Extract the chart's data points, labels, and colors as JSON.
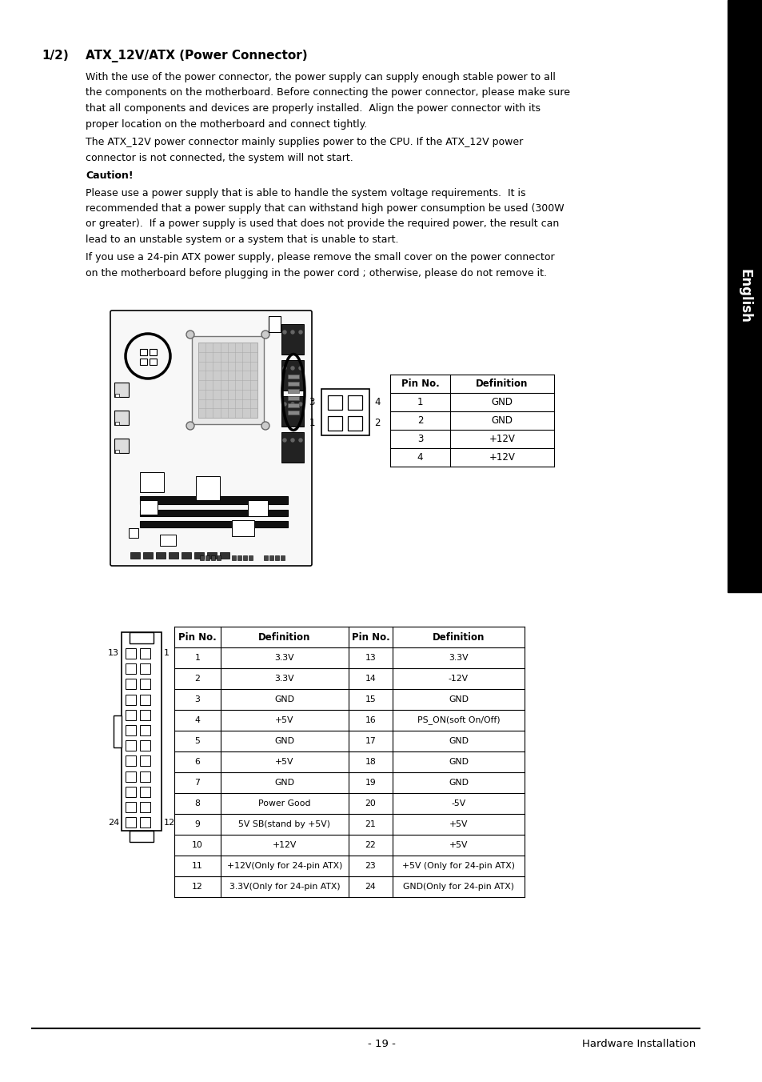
{
  "title_number": "1/2)",
  "title_text": "ATX_12V/ATX (Power Connector)",
  "body_text": [
    "With the use of the power connector, the power supply can supply enough stable power to all",
    "the components on the motherboard. Before connecting the power connector, please make sure",
    "that all components and devices are properly installed.  Align the power connector with its",
    "proper location on the motherboard and connect tightly.",
    "The ATX_12V power connector mainly supplies power to the CPU. If the ATX_12V power",
    "connector is not connected, the system will not start.",
    "Caution!",
    "Please use a power supply that is able to handle the system voltage requirements.  It is",
    "recommended that a power supply that can withstand high power consumption be used (300W",
    "or greater).  If a power supply is used that does not provide the required power, the result can",
    "lead to an unstable system or a system that is unable to start.",
    "If you use a 24-pin ATX power supply, please remove the small cover on the power connector",
    "on the motherboard before plugging in the power cord ; otherwise, please do not remove it."
  ],
  "sidebar_text": "English",
  "sidebar_bg": "#000000",
  "sidebar_fg": "#ffffff",
  "table1_headers": [
    "Pin No.",
    "Definition"
  ],
  "table1_rows": [
    [
      "1",
      "GND"
    ],
    [
      "2",
      "GND"
    ],
    [
      "3",
      "+12V"
    ],
    [
      "4",
      "+12V"
    ]
  ],
  "table2_headers": [
    "Pin No.",
    "Definition",
    "Pin No.",
    "Definition"
  ],
  "table2_rows": [
    [
      "1",
      "3.3V",
      "13",
      "3.3V"
    ],
    [
      "2",
      "3.3V",
      "14",
      "-12V"
    ],
    [
      "3",
      "GND",
      "15",
      "GND"
    ],
    [
      "4",
      "+5V",
      "16",
      "PS_ON(soft On/Off)"
    ],
    [
      "5",
      "GND",
      "17",
      "GND"
    ],
    [
      "6",
      "+5V",
      "18",
      "GND"
    ],
    [
      "7",
      "GND",
      "19",
      "GND"
    ],
    [
      "8",
      "Power Good",
      "20",
      "-5V"
    ],
    [
      "9",
      "5V SB(stand by +5V)",
      "21",
      "+5V"
    ],
    [
      "10",
      "+12V",
      "22",
      "+5V"
    ],
    [
      "11",
      "+12V(Only for 24-pin ATX)",
      "23",
      "+5V (Only for 24-pin ATX)"
    ],
    [
      "12",
      "3.3V(Only for 24-pin ATX)",
      "24",
      "GND(Only for 24-pin ATX)"
    ]
  ],
  "footer_page": "- 19 -",
  "footer_right": "Hardware Installation",
  "bg_color": "#ffffff"
}
